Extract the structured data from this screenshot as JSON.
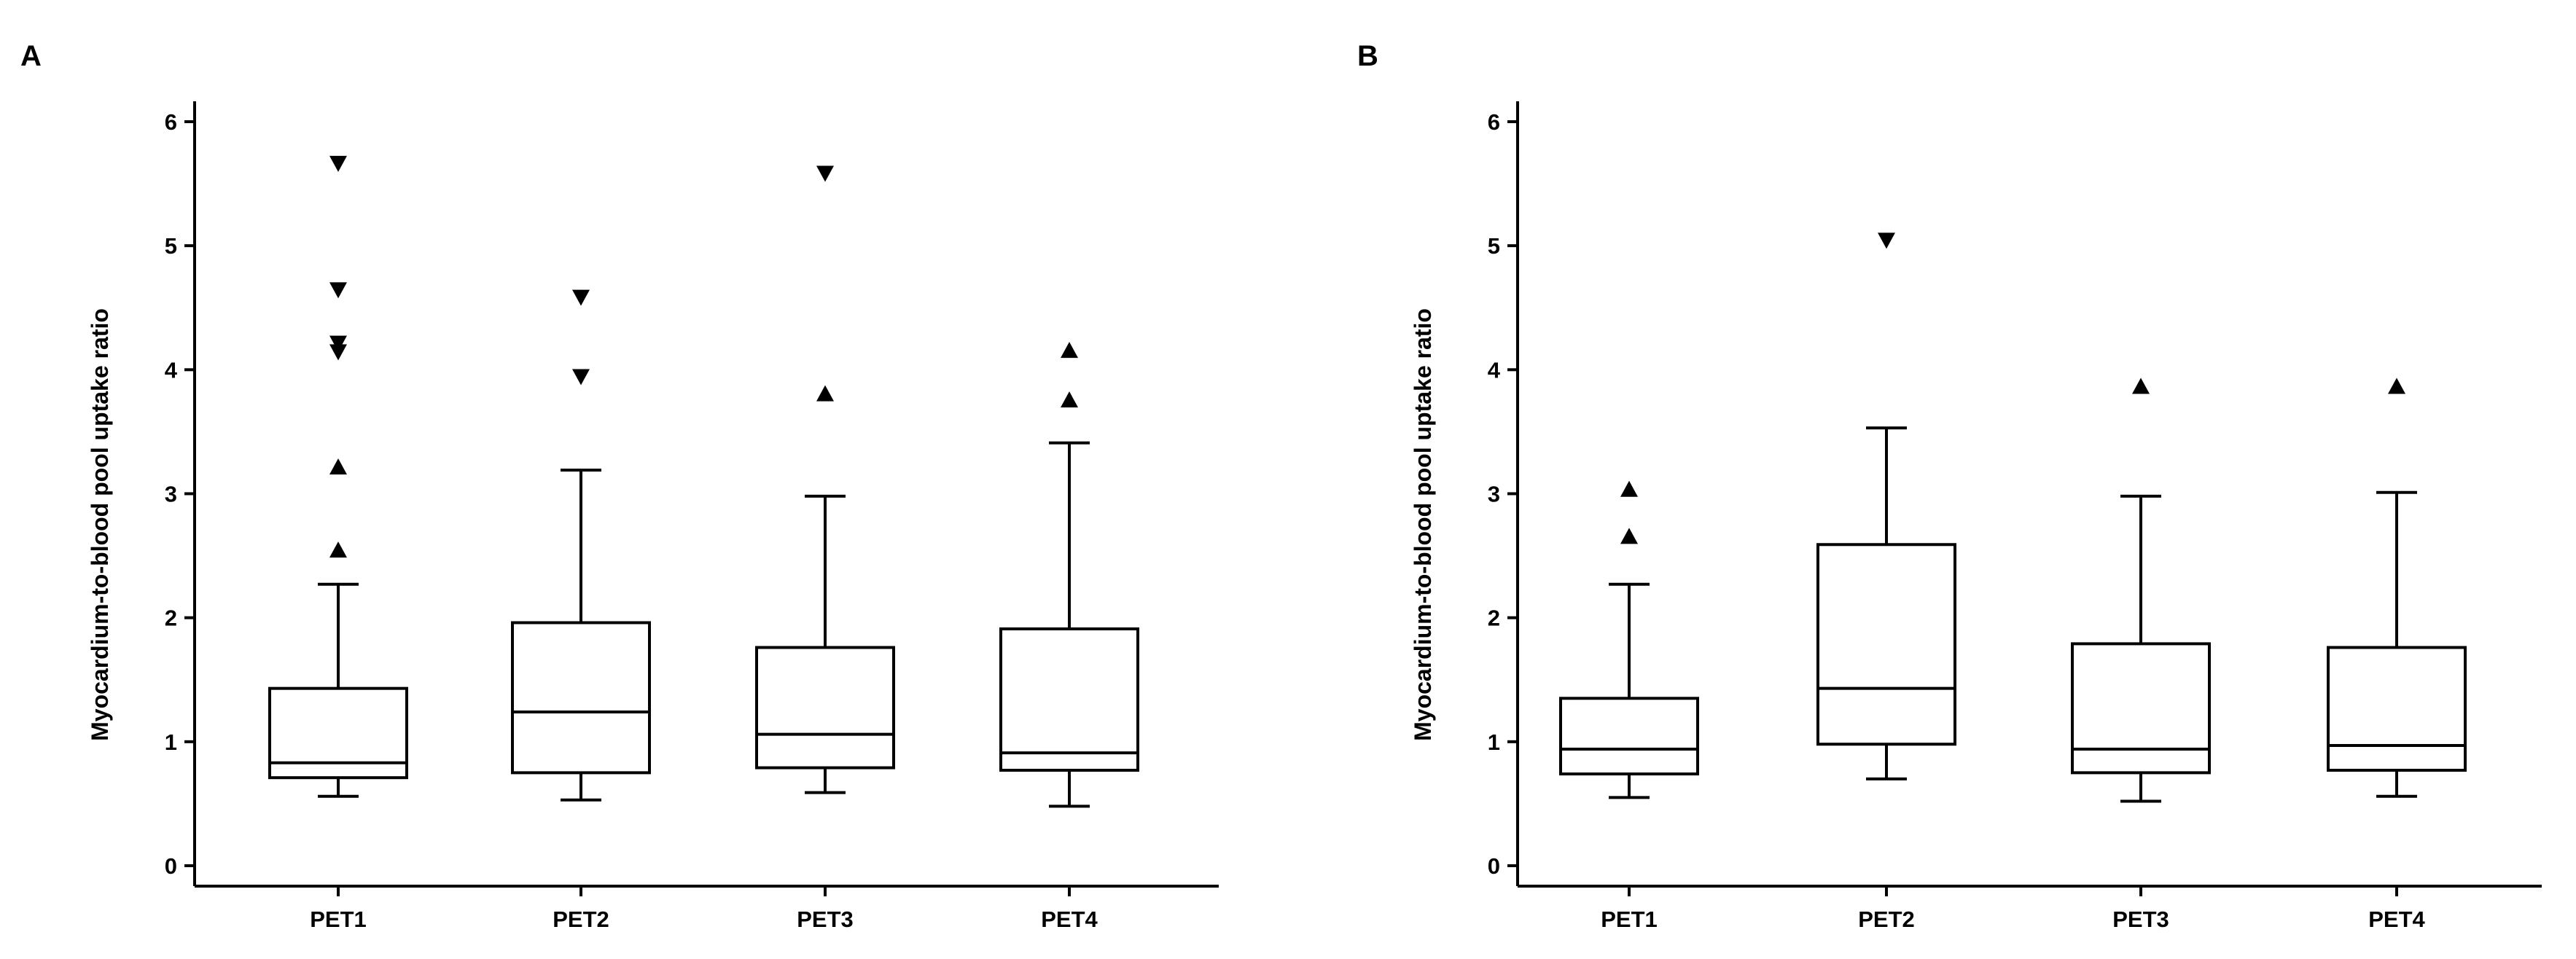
{
  "chart_data": [
    {
      "panel_label": "A",
      "type": "boxplot",
      "title": "",
      "xlabel": "",
      "ylabel": "Myocardium-to-blood pool uptake ratio",
      "ylim": [
        0,
        6
      ],
      "yticks": [
        "0",
        "1",
        "2",
        "3",
        "4",
        "5",
        "6"
      ],
      "categories": [
        "PET1",
        "PET2",
        "PET3",
        "PET4"
      ],
      "boxes": [
        {
          "category": "PET1",
          "whisker_low": 0.56,
          "q1": 0.71,
          "median": 0.83,
          "q3": 1.43,
          "whisker_high": 2.27,
          "outliers": [
            {
              "value": 5.66,
              "marker": "down"
            },
            {
              "value": 4.64,
              "marker": "down"
            },
            {
              "value": 4.21,
              "marker": "down"
            },
            {
              "value": 4.14,
              "marker": "down"
            },
            {
              "value": 3.22,
              "marker": "up"
            },
            {
              "value": 2.55,
              "marker": "up"
            }
          ]
        },
        {
          "category": "PET2",
          "whisker_low": 0.53,
          "q1": 0.75,
          "median": 1.24,
          "q3": 1.96,
          "whisker_high": 3.19,
          "outliers": [
            {
              "value": 4.58,
              "marker": "down"
            },
            {
              "value": 3.94,
              "marker": "down"
            }
          ]
        },
        {
          "category": "PET3",
          "whisker_low": 0.59,
          "q1": 0.79,
          "median": 1.06,
          "q3": 1.76,
          "whisker_high": 2.98,
          "outliers": [
            {
              "value": 5.58,
              "marker": "down"
            },
            {
              "value": 3.81,
              "marker": "up"
            }
          ]
        },
        {
          "category": "PET4",
          "whisker_low": 0.48,
          "q1": 0.77,
          "median": 0.91,
          "q3": 1.91,
          "whisker_high": 3.41,
          "outliers": [
            {
              "value": 4.16,
              "marker": "up"
            },
            {
              "value": 3.76,
              "marker": "up"
            }
          ]
        }
      ]
    },
    {
      "panel_label": "B",
      "type": "boxplot",
      "title": "",
      "xlabel": "",
      "ylabel": "Myocardium-to-blood pool uptake ratio",
      "ylim": [
        0,
        6
      ],
      "yticks": [
        "0",
        "1",
        "2",
        "3",
        "4",
        "5",
        "6"
      ],
      "categories": [
        "PET1",
        "PET2",
        "PET3",
        "PET4"
      ],
      "boxes": [
        {
          "category": "PET1",
          "whisker_low": 0.55,
          "q1": 0.74,
          "median": 0.94,
          "q3": 1.35,
          "whisker_high": 2.27,
          "outliers": [
            {
              "value": 3.04,
              "marker": "up"
            },
            {
              "value": 2.66,
              "marker": "up"
            }
          ]
        },
        {
          "category": "PET2",
          "whisker_low": 0.7,
          "q1": 0.98,
          "median": 1.43,
          "q3": 2.59,
          "whisker_high": 3.53,
          "outliers": [
            {
              "value": 5.04,
              "marker": "down"
            }
          ]
        },
        {
          "category": "PET3",
          "whisker_low": 0.52,
          "q1": 0.75,
          "median": 0.94,
          "q3": 1.79,
          "whisker_high": 2.98,
          "outliers": [
            {
              "value": 3.87,
              "marker": "up"
            }
          ]
        },
        {
          "category": "PET4",
          "whisker_low": 0.56,
          "q1": 0.77,
          "median": 0.97,
          "q3": 1.76,
          "whisker_high": 3.01,
          "outliers": [
            {
              "value": 3.87,
              "marker": "up"
            }
          ]
        }
      ]
    }
  ]
}
